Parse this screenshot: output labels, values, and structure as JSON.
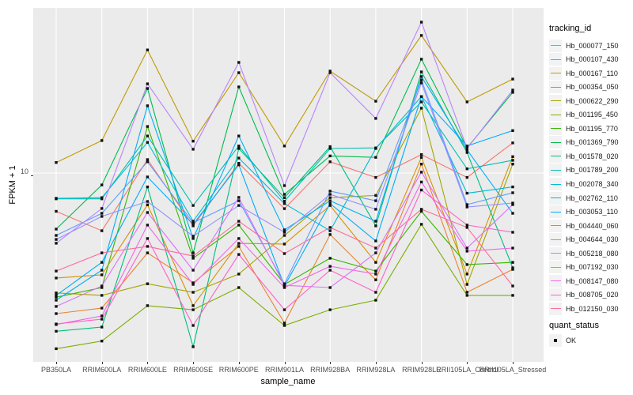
{
  "y_axis": {
    "title": "FPKM + 1",
    "tick": "10"
  },
  "x_axis": {
    "title": "sample_name"
  },
  "legend": {
    "tracking_title": "tracking_id",
    "quant_title": "quant_status",
    "quant_ok_label": "OK"
  },
  "chart_data": {
    "type": "line",
    "title": "",
    "xlabel": "sample_name",
    "ylabel": "FPKM + 1",
    "y_scale": "log10",
    "y_tick_labels": [
      "10"
    ],
    "grid": "major-on-grey-panel",
    "legend_position": "right",
    "point_marker": "filled-black-square",
    "quant_status_all_points": "OK",
    "categories": [
      "PB350LA",
      "RRIM600LA",
      "RRIM600LE",
      "RRIM600SE",
      "RRIM600PE",
      "RRIM901LA",
      "RRIM928BA",
      "RRIM928LA",
      "RRIM928LE",
      "RRII105LA_Control",
      "RRII105LA_Stressed"
    ],
    "series": [
      {
        "name": "Hb_000077_150",
        "color": "#F8766D",
        "values": [
          6.4,
          5.1,
          11.7,
          5.4,
          11.2,
          6.6,
          11.4,
          9.5,
          12.4,
          9.5,
          14.2
        ]
      },
      {
        "name": "Hb_000107_430",
        "color": "#EA8331",
        "values": [
          1.94,
          2.07,
          3.94,
          2.78,
          4.25,
          1.74,
          4.88,
          2.88,
          11.1,
          2.49,
          3.25
        ]
      },
      {
        "name": "Hb_000167_110",
        "color": "#D89000",
        "values": [
          2.94,
          3.05,
          6.9,
          2.13,
          4.4,
          4.37,
          6.85,
          3.53,
          12.0,
          3.08,
          12.1
        ]
      },
      {
        "name": "Hb_000354_050",
        "color": "#C09B00",
        "values": [
          11.3,
          14.6,
          42.0,
          14.5,
          32.2,
          13.7,
          32.8,
          23.1,
          49.7,
          22.9,
          29.9
        ]
      },
      {
        "name": "Hb_000622_290",
        "color": "#A3A500",
        "values": [
          2.47,
          2.4,
          2.75,
          2.49,
          3.08,
          4.83,
          7.5,
          7.7,
          21.3,
          2.73,
          11.1
        ]
      },
      {
        "name": "Hb_001195_450",
        "color": "#7CAE00",
        "values": [
          1.29,
          1.41,
          2.13,
          2.03,
          2.63,
          1.69,
          2.03,
          2.27,
          5.5,
          2.4,
          2.4
        ]
      },
      {
        "name": "Hb_001195_770",
        "color": "#39B600",
        "values": [
          2.35,
          2.63,
          17.2,
          3.7,
          5.45,
          2.73,
          3.7,
          3.19,
          6.4,
          3.44,
          3.53
        ]
      },
      {
        "name": "Hb_001369_790",
        "color": "#00BB4E",
        "values": [
          5.2,
          8.7,
          26.8,
          3.94,
          27.3,
          7.8,
          12.2,
          12.0,
          37.7,
          13.4,
          25.6
        ]
      },
      {
        "name": "Hb_001578_020",
        "color": "#00BF7D",
        "values": [
          1.58,
          1.66,
          8.5,
          1.32,
          13.3,
          7.5,
          13.6,
          5.4,
          32.5,
          12.7,
          3.31
        ]
      },
      {
        "name": "Hb_001789_200",
        "color": "#00C0AF",
        "values": [
          7.4,
          7.4,
          15.4,
          6.85,
          13.7,
          7.2,
          13.3,
          13.4,
          22.9,
          10.5,
          11.6
        ]
      },
      {
        "name": "Hb_002078_340",
        "color": "#00BCD8",
        "values": [
          7.45,
          7.5,
          14.3,
          5.7,
          11.9,
          7.0,
          5.1,
          13.3,
          24.4,
          7.9,
          8.5
        ]
      },
      {
        "name": "Hb_002762_110",
        "color": "#00B0F6",
        "values": [
          2.27,
          3.22,
          21.9,
          4.66,
          15.4,
          5.15,
          7.24,
          5.7,
          30.8,
          13.1,
          6.25
        ]
      },
      {
        "name": "Hb_003053_110",
        "color": "#00ACFC",
        "values": [
          2.4,
          3.53,
          9.55,
          5.5,
          11.0,
          2.68,
          7.0,
          4.53,
          24.4,
          13.7,
          16.4
        ]
      },
      {
        "name": "Hb_004440_060",
        "color": "#619CFF",
        "values": [
          4.83,
          6.25,
          11.4,
          5.6,
          7.24,
          2.75,
          8.1,
          7.24,
          29.6,
          6.92,
          7.94
        ]
      },
      {
        "name": "Hb_004644_030",
        "color": "#9590FF",
        "values": [
          4.61,
          6.03,
          7.18,
          4.79,
          6.85,
          5.01,
          7.8,
          6.55,
          28.6,
          6.73,
          7.05
        ]
      },
      {
        "name": "Hb_005218_080",
        "color": "#B983FF",
        "values": [
          4.41,
          6.61,
          28.3,
          13.2,
          36.3,
          8.63,
          32.2,
          18.9,
          58.1,
          13.3,
          26.3
        ]
      },
      {
        "name": "Hb_007192_030",
        "color": "#DB72FB",
        "values": [
          2.11,
          2.68,
          6.31,
          3.22,
          7.52,
          2.7,
          2.63,
          3.94,
          10.1,
          4.17,
          6.92
        ]
      },
      {
        "name": "Hb_008147_080",
        "color": "#F265E8",
        "values": [
          1.71,
          1.89,
          5.45,
          2.73,
          4.66,
          2.63,
          3.37,
          3.08,
          9.0,
          4.02,
          4.17
        ]
      },
      {
        "name": "Hb_008705_020",
        "color": "#FF61C7",
        "values": [
          1.72,
          1.82,
          4.66,
          1.69,
          3.87,
          2.03,
          3.22,
          2.49,
          8.2,
          5.45,
          5.01
        ]
      },
      {
        "name": "Hb_012150_030",
        "color": "#FF6A9A",
        "values": [
          3.19,
          3.94,
          4.25,
          3.8,
          5.7,
          3.91,
          5.3,
          4.17,
          6.55,
          5.3,
          2.68
        ]
      }
    ]
  }
}
